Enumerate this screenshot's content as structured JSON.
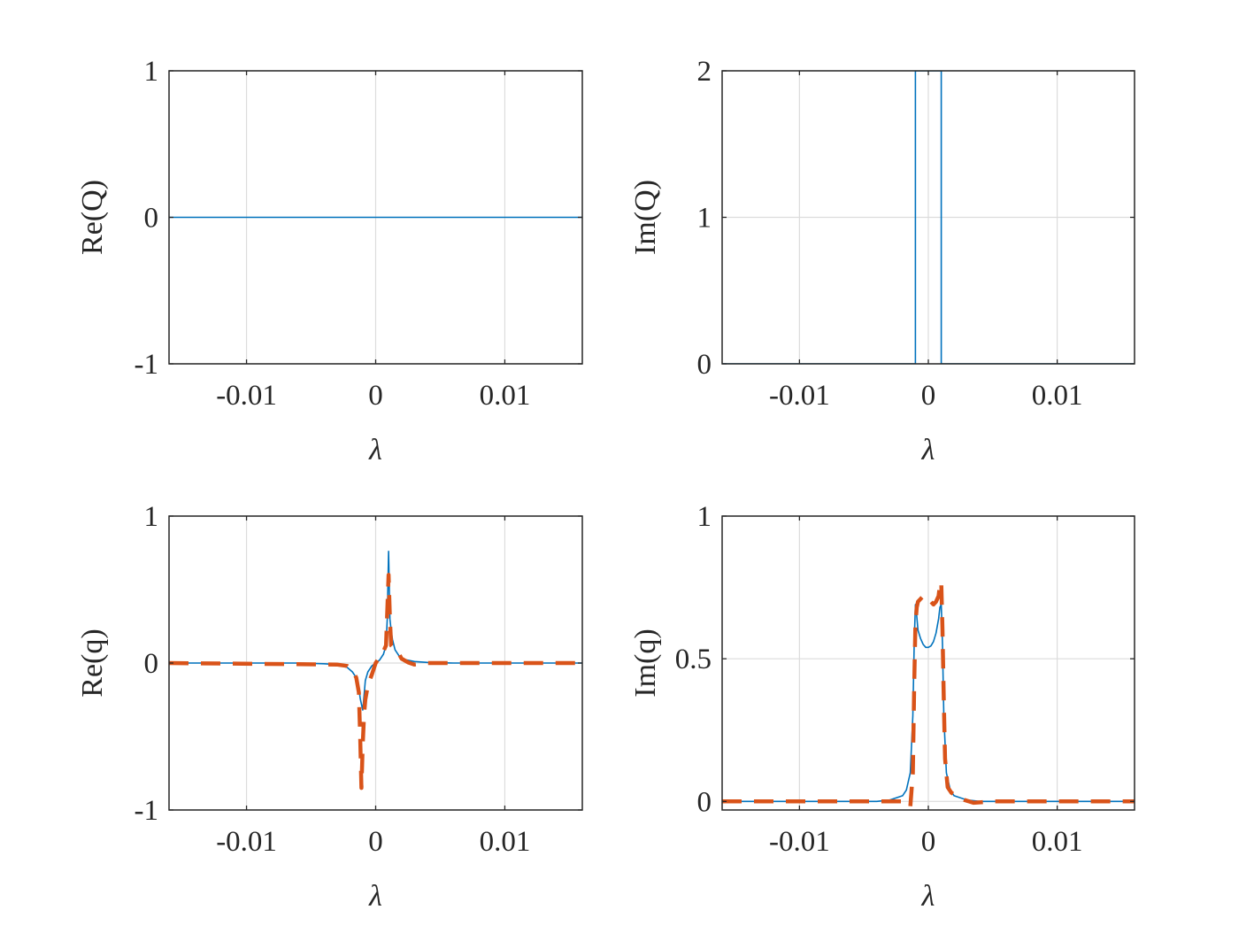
{
  "figure": {
    "background": "#ffffff",
    "axis_color": "#262626",
    "grid_color": "#dcdcdc",
    "series_colors": [
      "#0072BD",
      "#D95319"
    ]
  },
  "chart_data": [
    {
      "type": "line",
      "xlabel": "λ",
      "ylabel": "Re(Q)",
      "xlim": [
        -0.016,
        0.016
      ],
      "ylim": [
        -1,
        1
      ],
      "xticks": [
        -0.01,
        0,
        0.01
      ],
      "xtick_labels": [
        "-0.01",
        "0",
        "0.01"
      ],
      "yticks": [
        -1,
        0,
        1
      ],
      "ytick_labels": [
        "-1",
        "0",
        "1"
      ],
      "grid": true,
      "series": [
        {
          "style": "solid",
          "color": "#0072BD",
          "x": [
            -0.016,
            0.016
          ],
          "y": [
            0,
            0
          ]
        }
      ]
    },
    {
      "type": "line",
      "xlabel": "λ",
      "ylabel": "Im(Q)",
      "xlim": [
        -0.016,
        0.016
      ],
      "ylim": [
        0,
        2
      ],
      "xticks": [
        -0.01,
        0,
        0.01
      ],
      "xtick_labels": [
        "-0.01",
        "0",
        "0.01"
      ],
      "yticks": [
        0,
        1,
        2
      ],
      "ytick_labels": [
        "0",
        "1",
        "2"
      ],
      "grid": true,
      "series": [
        {
          "style": "solid",
          "color": "#0072BD",
          "x": [
            -0.016,
            -0.001,
            -0.001,
            0.001,
            0.001,
            0.016
          ],
          "y": [
            0,
            0,
            2,
            2,
            0,
            0
          ]
        }
      ]
    },
    {
      "type": "line",
      "xlabel": "λ",
      "ylabel": "Re(q)",
      "xlim": [
        -0.016,
        0.016
      ],
      "ylim": [
        -1,
        1
      ],
      "xticks": [
        -0.01,
        0,
        0.01
      ],
      "xtick_labels": [
        "-0.01",
        "0",
        "0.01"
      ],
      "yticks": [
        -1,
        0,
        1
      ],
      "ytick_labels": [
        "-1",
        "0",
        "1"
      ],
      "grid": true,
      "series": [
        {
          "style": "solid",
          "color": "#0072BD",
          "x": [
            -0.016,
            -0.006,
            -0.004,
            -0.003,
            -0.0022,
            -0.0018,
            -0.0015,
            -0.0013,
            -0.0012,
            -0.0011,
            -0.001,
            -0.0009,
            -0.0008,
            -0.0006,
            -0.0003,
            0,
            0.0003,
            0.0006,
            0.0008,
            0.0009,
            0.001,
            0.0011,
            0.0012,
            0.0013,
            0.0015,
            0.0018,
            0.0022,
            0.003,
            0.004,
            0.006,
            0.016
          ],
          "y": [
            0,
            0,
            -0.005,
            -0.01,
            -0.03,
            -0.06,
            -0.1,
            -0.17,
            -0.24,
            -0.28,
            -0.32,
            -0.22,
            -0.12,
            -0.06,
            -0.02,
            0,
            0.02,
            0.06,
            0.12,
            0.3,
            0.76,
            0.3,
            0.22,
            0.16,
            0.09,
            0.05,
            0.025,
            0.01,
            0.004,
            0,
            0
          ]
        },
        {
          "style": "dashed",
          "color": "#D95319",
          "x": [
            -0.016,
            -0.003,
            -0.0022,
            -0.0018,
            -0.0015,
            -0.0013,
            -0.0012,
            -0.0011,
            -0.001,
            -0.0009,
            -0.0008,
            -0.0006,
            -0.0003,
            0,
            0.0003,
            0.0006,
            0.0008,
            0.0009,
            0.001,
            0.0011,
            0.0012,
            0.0014,
            0.0017,
            0.002,
            0.0025,
            0.003,
            0.004,
            0.016
          ],
          "y": [
            0,
            -0.01,
            -0.02,
            -0.05,
            -0.1,
            -0.2,
            -0.5,
            -0.85,
            -0.55,
            -0.35,
            -0.25,
            -0.15,
            -0.08,
            0,
            0.04,
            0.08,
            0.12,
            0.35,
            0.6,
            0.3,
            0.12,
            0.1,
            0.08,
            0.03,
            0.005,
            -0.01,
            0,
            0
          ]
        }
      ]
    },
    {
      "type": "line",
      "xlabel": "λ",
      "ylabel": "Im(q)",
      "xlim": [
        -0.016,
        0.016
      ],
      "ylim": [
        -0.03,
        1
      ],
      "xticks": [
        -0.01,
        0,
        0.01
      ],
      "xtick_labels": [
        "-0.01",
        "0",
        "0.01"
      ],
      "yticks": [
        0,
        0.5,
        1
      ],
      "ytick_labels": [
        "0",
        "0.5",
        "1"
      ],
      "grid": true,
      "series": [
        {
          "style": "solid",
          "color": "#0072BD",
          "x": [
            -0.016,
            -0.004,
            -0.003,
            -0.002,
            -0.0017,
            -0.0014,
            -0.0012,
            -0.0011,
            -0.001,
            -0.0009,
            -0.0008,
            -0.0006,
            -0.0004,
            -0.0002,
            0,
            0.0002,
            0.0004,
            0.0006,
            0.0008,
            0.0009,
            0.001,
            0.0011,
            0.0012,
            0.0014,
            0.0017,
            0.002,
            0.003,
            0.004,
            0.016
          ],
          "y": [
            0,
            0,
            0.005,
            0.02,
            0.04,
            0.1,
            0.3,
            0.55,
            0.69,
            0.65,
            0.6,
            0.57,
            0.55,
            0.54,
            0.54,
            0.545,
            0.56,
            0.59,
            0.64,
            0.68,
            0.69,
            0.55,
            0.3,
            0.1,
            0.04,
            0.02,
            0.005,
            0,
            0
          ]
        },
        {
          "style": "dashed",
          "color": "#D95319",
          "x": [
            -0.016,
            -0.002,
            -0.0016,
            -0.0014,
            -0.0012,
            -0.0011,
            -0.001,
            -0.0009,
            -0.0008,
            -0.0006,
            -0.0004,
            -0.0002,
            0,
            0.0002,
            0.0004,
            0.0006,
            0.0008,
            0.0009,
            0.001,
            0.0011,
            0.0012,
            0.0013,
            0.0015,
            0.0018,
            0.0022,
            0.0028,
            0.0035,
            0.005,
            0.016
          ],
          "y": [
            0,
            0,
            -0.01,
            -0.02,
            0.1,
            0.4,
            0.62,
            0.68,
            0.7,
            0.71,
            0.72,
            0.72,
            0.71,
            0.7,
            0.69,
            0.7,
            0.72,
            0.76,
            0.77,
            0.6,
            0.35,
            0.15,
            0.05,
            0.03,
            0.02,
            0.005,
            -0.005,
            0,
            0
          ]
        }
      ]
    }
  ]
}
